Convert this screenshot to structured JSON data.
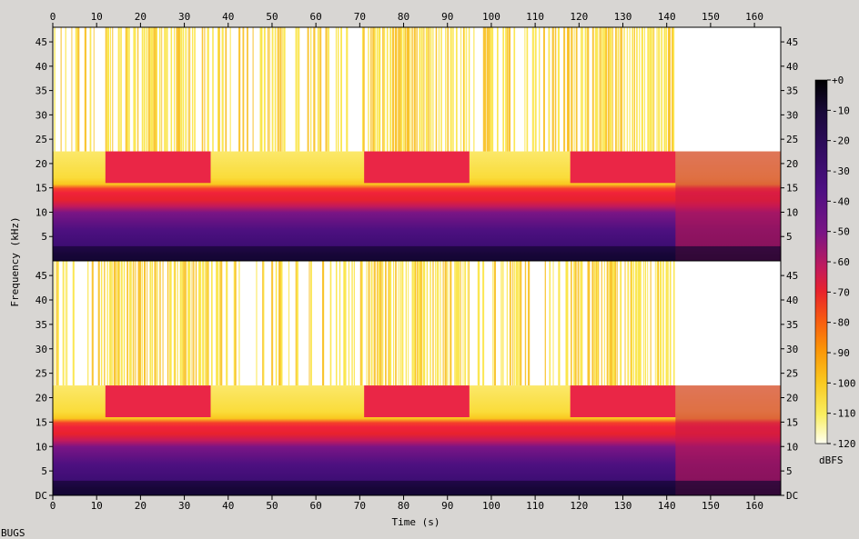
{
  "chart_data": {
    "type": "heatmap",
    "variant": "spectrogram",
    "channels": 2,
    "xlabel": "Time (s)",
    "ylabel": "Frequency (kHz)",
    "xlim": [
      0,
      166
    ],
    "ylim_khz": [
      0,
      48
    ],
    "x_ticks": [
      "0",
      "10",
      "20",
      "30",
      "40",
      "50",
      "60",
      "70",
      "80",
      "90",
      "100",
      "110",
      "120",
      "130",
      "140",
      "150",
      "160"
    ],
    "y_ticks_top": [
      "5",
      "10",
      "15",
      "20",
      "25",
      "30",
      "35",
      "40",
      "45"
    ],
    "y_ticks_bottom": [
      "DC",
      "5",
      "10",
      "15",
      "20",
      "25",
      "30",
      "35",
      "40",
      "45"
    ],
    "colorbar": {
      "label": "dBFS",
      "range": [
        -120,
        0
      ],
      "ticks": [
        "+0",
        "-10",
        "-20",
        "-30",
        "-40",
        "-50",
        "-60",
        "-70",
        "-80",
        "-90",
        "-100",
        "-110",
        "-120"
      ],
      "colormap": [
        "#000000",
        "#1a0a3a",
        "#3c0a6e",
        "#5d0f8a",
        "#8a1a8a",
        "#c41a5a",
        "#e8222d",
        "#f75a10",
        "#fb9406",
        "#f9c81f",
        "#f9ee60",
        "#fffff0"
      ]
    },
    "lowpass_cutoff_khz": 22.5,
    "bright_sections_s": [
      [
        12,
        36
      ],
      [
        71,
        95
      ],
      [
        118,
        142
      ]
    ],
    "content_end_s": 142,
    "tail_end_s": 166
  },
  "footer": {
    "label": "BUGS"
  },
  "colors": {
    "background": "#d8d6d3",
    "silence": "#ffffff"
  }
}
